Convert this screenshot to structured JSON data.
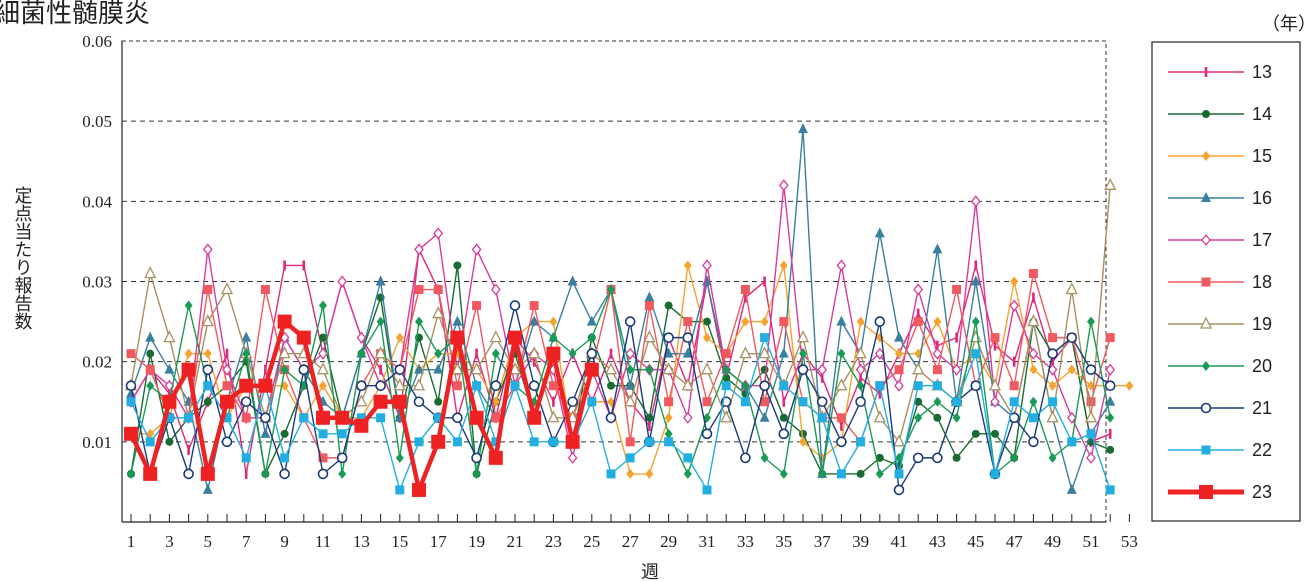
{
  "page": {
    "title": "細菌性髄膜炎",
    "year_unit": "（年）"
  },
  "chart_data": {
    "type": "line",
    "title": "細菌性髄膜炎",
    "xlabel": "週",
    "ylabel": "定点当たり報告数",
    "ylim": [
      0,
      0.06
    ],
    "xlim": [
      1,
      53
    ],
    "x_ticks": [
      1,
      3,
      5,
      7,
      9,
      11,
      13,
      15,
      17,
      19,
      21,
      23,
      25,
      27,
      29,
      31,
      33,
      35,
      37,
      39,
      41,
      43,
      45,
      47,
      49,
      51,
      53
    ],
    "y_ticks": [
      0.01,
      0.02,
      0.03,
      0.04,
      0.05,
      0.06
    ],
    "y_tick_labels": [
      "0.01",
      "0.02",
      "0.03",
      "0.04",
      "0.05",
      "0.06"
    ],
    "grid": "horizontal-dashed",
    "legend_title": "（年）",
    "legend_position": "right",
    "series": [
      {
        "name": "13",
        "color": "#e0287a",
        "marker": "bar",
        "values": [
          0.015,
          0.019,
          0.016,
          0.009,
          0.015,
          0.021,
          0.006,
          0.019,
          0.032,
          0.032,
          0.021,
          0.03,
          0.023,
          0.019,
          0.013,
          0.034,
          0.029,
          0.013,
          0.021,
          0.013,
          0.023,
          0.02,
          0.015,
          0.021,
          0.015,
          0.021,
          0.015,
          0.012,
          0.023,
          0.017,
          0.03,
          0.018,
          0.028,
          0.03,
          0.015,
          0.021,
          0.018,
          0.012,
          0.018,
          0.016,
          0.021,
          0.026,
          0.022,
          0.023,
          0.032,
          0.022,
          0.02,
          0.028,
          0.02,
          0.023,
          0.01,
          0.011
        ]
      },
      {
        "name": "14",
        "color": "#1a6b32",
        "marker": "circle",
        "values": [
          0.006,
          0.021,
          0.01,
          0.013,
          0.015,
          0.017,
          0.02,
          0.006,
          0.011,
          0.017,
          0.023,
          0.013,
          0.021,
          0.028,
          0.013,
          0.023,
          0.015,
          0.032,
          0.006,
          0.015,
          0.021,
          0.013,
          0.021,
          0.01,
          0.023,
          0.017,
          0.017,
          0.013,
          0.027,
          0.025,
          0.025,
          0.018,
          0.016,
          0.019,
          0.013,
          0.011,
          0.006,
          0.006,
          0.006,
          0.008,
          0.007,
          0.015,
          0.013,
          0.008,
          0.011,
          0.011,
          0.008,
          0.025,
          0.021,
          0.023,
          0.01,
          0.009
        ]
      },
      {
        "name": "15",
        "color": "#f5a330",
        "marker": "diamond",
        "values": [
          0.011,
          0.011,
          0.013,
          0.021,
          0.021,
          0.013,
          0.017,
          0.017,
          0.017,
          0.013,
          0.017,
          0.013,
          0.013,
          0.017,
          0.023,
          0.019,
          0.021,
          0.021,
          0.019,
          0.015,
          0.023,
          0.025,
          0.025,
          0.01,
          0.015,
          0.015,
          0.006,
          0.006,
          0.013,
          0.032,
          0.023,
          0.021,
          0.025,
          0.025,
          0.032,
          0.01,
          0.008,
          0.01,
          0.025,
          0.023,
          0.021,
          0.021,
          0.025,
          0.019,
          0.021,
          0.017,
          0.03,
          0.019,
          0.017,
          0.019,
          0.017,
          0.017,
          0.017
        ]
      },
      {
        "name": "16",
        "color": "#3a7fa0",
        "marker": "triangle",
        "values": [
          0.016,
          0.023,
          0.019,
          0.015,
          0.004,
          0.015,
          0.023,
          0.011,
          0.023,
          0.019,
          0.015,
          0.013,
          0.021,
          0.03,
          0.013,
          0.019,
          0.019,
          0.025,
          0.017,
          0.013,
          0.017,
          0.025,
          0.023,
          0.03,
          0.025,
          0.029,
          0.017,
          0.028,
          0.021,
          0.021,
          0.03,
          0.019,
          0.017,
          0.013,
          0.021,
          0.049,
          0.006,
          0.025,
          0.021,
          0.036,
          0.023,
          0.019,
          0.034,
          0.015,
          0.03,
          0.015,
          0.013,
          0.025,
          0.013,
          0.004,
          0.011,
          0.015
        ]
      },
      {
        "name": "17",
        "color": "#d83a9a",
        "marker": "diamond-open",
        "values": [
          0.015,
          0.019,
          0.017,
          0.013,
          0.034,
          0.019,
          0.013,
          0.013,
          0.023,
          0.019,
          0.021,
          0.03,
          0.023,
          0.017,
          0.019,
          0.034,
          0.036,
          0.019,
          0.034,
          0.029,
          0.017,
          0.021,
          0.019,
          0.008,
          0.019,
          0.013,
          0.021,
          0.019,
          0.019,
          0.013,
          0.032,
          0.019,
          0.017,
          0.017,
          0.042,
          0.019,
          0.019,
          0.032,
          0.019,
          0.021,
          0.017,
          0.029,
          0.021,
          0.019,
          0.04,
          0.015,
          0.027,
          0.021,
          0.019,
          0.013,
          0.008,
          0.019
        ]
      },
      {
        "name": "18",
        "color": "#ee5a60",
        "marker": "square",
        "values": [
          0.021,
          0.019,
          0.013,
          0.013,
          0.029,
          0.017,
          0.013,
          0.029,
          0.019,
          0.013,
          0.008,
          0.008,
          0.017,
          0.021,
          0.019,
          0.029,
          0.029,
          0.017,
          0.027,
          0.013,
          0.017,
          0.027,
          0.017,
          0.013,
          0.019,
          0.029,
          0.01,
          0.027,
          0.015,
          0.025,
          0.015,
          0.021,
          0.029,
          0.015,
          0.025,
          0.015,
          0.013,
          0.013,
          0.01,
          0.017,
          0.019,
          0.025,
          0.019,
          0.029,
          0.017,
          0.023,
          0.017,
          0.031,
          0.023,
          0.023,
          0.015,
          0.023
        ]
      },
      {
        "name": "19",
        "color": "#a89060",
        "marker": "triangle-open",
        "values": [
          0.017,
          0.031,
          0.023,
          0.013,
          0.025,
          0.029,
          0.021,
          0.013,
          0.021,
          0.021,
          0.019,
          0.013,
          0.015,
          0.021,
          0.017,
          0.017,
          0.026,
          0.019,
          0.019,
          0.023,
          0.019,
          0.021,
          0.013,
          0.013,
          0.021,
          0.019,
          0.015,
          0.023,
          0.019,
          0.017,
          0.019,
          0.013,
          0.021,
          0.021,
          0.017,
          0.023,
          0.013,
          0.017,
          0.021,
          0.013,
          0.01,
          0.019,
          0.017,
          0.015,
          0.023,
          0.017,
          0.013,
          0.025,
          0.013,
          0.029,
          0.013,
          0.042
        ]
      },
      {
        "name": "20",
        "color": "#1a9b55",
        "marker": "diamond",
        "values": [
          0.006,
          0.017,
          0.015,
          0.027,
          0.017,
          0.013,
          0.021,
          0.006,
          0.019,
          0.017,
          0.027,
          0.006,
          0.021,
          0.025,
          0.008,
          0.025,
          0.021,
          0.023,
          0.006,
          0.021,
          0.017,
          0.015,
          0.023,
          0.021,
          0.023,
          0.029,
          0.019,
          0.019,
          0.011,
          0.006,
          0.013,
          0.019,
          0.017,
          0.008,
          0.006,
          0.021,
          0.006,
          0.021,
          0.017,
          0.006,
          0.008,
          0.013,
          0.015,
          0.013,
          0.025,
          0.006,
          0.008,
          0.015,
          0.008,
          0.01,
          0.025,
          0.013
        ]
      },
      {
        "name": "21",
        "color": "#1a3a7a",
        "marker": "circle-open",
        "values": [
          0.017,
          0.006,
          0.013,
          0.006,
          0.019,
          0.01,
          0.015,
          0.013,
          0.006,
          0.019,
          0.006,
          0.008,
          0.017,
          0.017,
          0.019,
          0.015,
          0.013,
          0.013,
          0.008,
          0.017,
          0.027,
          0.017,
          0.01,
          0.015,
          0.021,
          0.013,
          0.025,
          0.01,
          0.023,
          0.023,
          0.011,
          0.015,
          0.008,
          0.017,
          0.011,
          0.019,
          0.015,
          0.01,
          0.015,
          0.025,
          0.004,
          0.008,
          0.008,
          0.015,
          0.017,
          0.006,
          0.013,
          0.01,
          0.021,
          0.023,
          0.019,
          0.017
        ]
      },
      {
        "name": "22",
        "color": "#22aee0",
        "marker": "square",
        "values": [
          0.015,
          0.01,
          0.013,
          0.013,
          0.017,
          0.013,
          0.008,
          0.017,
          0.008,
          0.013,
          0.011,
          0.011,
          0.013,
          0.013,
          0.004,
          0.01,
          0.013,
          0.01,
          0.017,
          0.01,
          0.017,
          0.01,
          0.01,
          0.01,
          0.015,
          0.006,
          0.008,
          0.01,
          0.01,
          0.008,
          0.004,
          0.017,
          0.015,
          0.023,
          0.017,
          0.015,
          0.013,
          0.006,
          0.01,
          0.017,
          0.006,
          0.017,
          0.017,
          0.015,
          0.021,
          0.006,
          0.015,
          0.013,
          0.015,
          0.01,
          0.011,
          0.004
        ]
      },
      {
        "name": "23",
        "color": "#ee2222",
        "marker": "square-big",
        "values": [
          0.011,
          0.006,
          0.015,
          0.019,
          0.006,
          0.015,
          0.017,
          0.017,
          0.025,
          0.023,
          0.013,
          0.013,
          0.012,
          0.015,
          0.015,
          0.004,
          0.01,
          0.023,
          0.013,
          0.008,
          0.023,
          0.013,
          0.021,
          0.01,
          0.019
        ]
      }
    ]
  }
}
